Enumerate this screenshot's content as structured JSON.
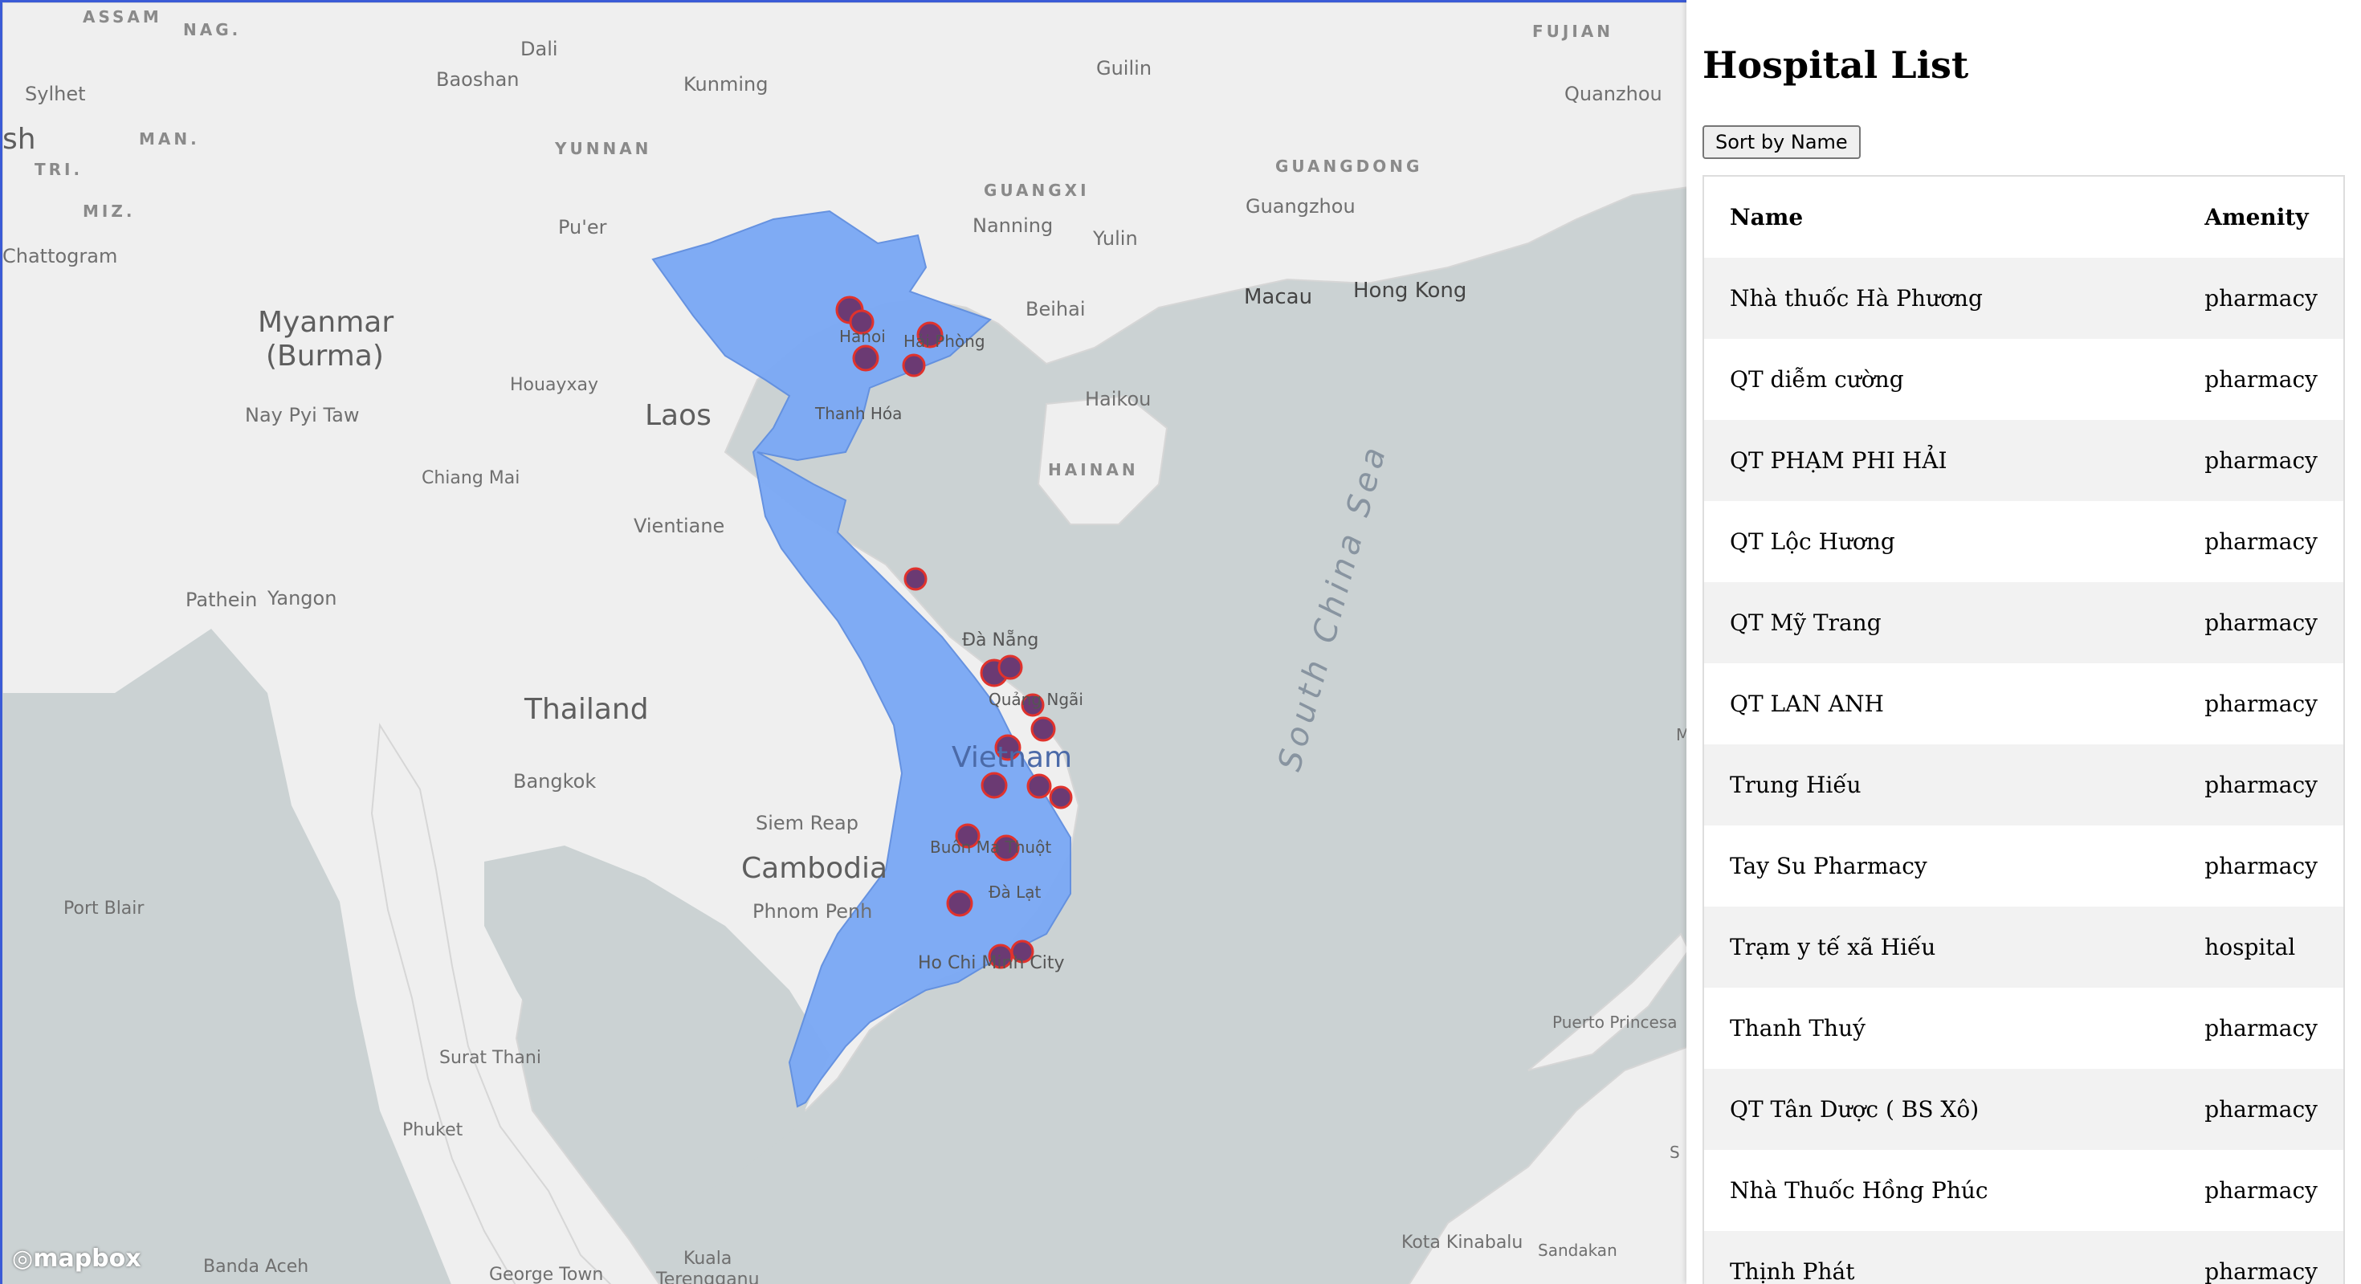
{
  "panel": {
    "title": "Hospital List",
    "sort_button": "Sort by Name",
    "columns": [
      "Name",
      "Amenity"
    ],
    "rows": [
      {
        "name": "Nhà thuốc Hà Phương",
        "amenity": "pharmacy"
      },
      {
        "name": "QT diễm cường",
        "amenity": "pharmacy"
      },
      {
        "name": "QT PHẠM PHI HẢI",
        "amenity": "pharmacy"
      },
      {
        "name": "QT Lộc Hương",
        "amenity": "pharmacy"
      },
      {
        "name": "QT Mỹ Trang",
        "amenity": "pharmacy"
      },
      {
        "name": "QT LAN ANH",
        "amenity": "pharmacy"
      },
      {
        "name": "Trung Hiếu",
        "amenity": "pharmacy"
      },
      {
        "name": "Tay Su Pharmacy",
        "amenity": "pharmacy"
      },
      {
        "name": "Trạm y tế xã Hiếu",
        "amenity": "hospital"
      },
      {
        "name": "Thanh Thuý",
        "amenity": "pharmacy"
      },
      {
        "name": "QT Tân Dược ( BS Xô)",
        "amenity": "pharmacy"
      },
      {
        "name": "Nhà Thuốc Hồng Phúc",
        "amenity": "pharmacy"
      },
      {
        "name": "Thịnh Phát",
        "amenity": "pharmacy"
      }
    ]
  },
  "map": {
    "attribution": "mapbox",
    "highlight_color": "#7aa8f5",
    "marker_colors": {
      "purple": "#6b3a73",
      "red": "#e0322c"
    },
    "labels": {
      "assam": "ASSAM",
      "nag": "NAG.",
      "dali": "Dali",
      "guilin": "Guilin",
      "fujian": "FUJIAN",
      "sylhet": "Sylhet",
      "baoshan": "Baoshan",
      "kunming": "Kunming",
      "quanzhou": "Quanzhou",
      "sh": "sh",
      "man": "MAN.",
      "yunnan": "YUNNAN",
      "tri": "TRI.",
      "guangdong": "GUANGDONG",
      "guangxi": "GUANGXI",
      "miz": "MIZ.",
      "nanning": "Nanning",
      "guangzhou": "Guangzhou",
      "puer": "Pu'er",
      "yulin": "Yulin",
      "chattogram": "Chattogram",
      "macau": "Macau",
      "hongkong": "Hong Kong",
      "myanmar1": "Myanmar",
      "myanmar2": "(Burma)",
      "beihai": "Beihai",
      "hanoi": "Hanoi",
      "haiphong": "Hải Phòng",
      "houayxay": "Houayxay",
      "naypyitaw": "Nay Pyi Taw",
      "laos": "Laos",
      "haikou": "Haikou",
      "thanhhoa": "Thanh Hóa",
      "hainan": "HAINAN",
      "chiangmai": "Chiang Mai",
      "vientiane": "Vientiane",
      "pathein": "Pathein",
      "yangon": "Yangon",
      "danang": "Đà Nẵng",
      "southchinasea": "South China Sea",
      "quangngai": "Quảng Ngãi",
      "thailand": "Thailand",
      "vietnam": "Vietnam",
      "bangkok": "Bangkok",
      "siemreap": "Siem Reap",
      "buonmathuot": "Buôn Ma Thuột",
      "cambodia": "Cambodia",
      "dalat": "Đà Lạt",
      "phnompenh": "Phnom Penh",
      "portblair": "Port Blair",
      "hochiminh": "Ho Chi Minh City",
      "puertoprincesa": "Puerto Princesa",
      "suratthani": "Surat Thani",
      "phuket": "Phuket",
      "kotakinabalu": "Kota Kinabalu",
      "sandakan": "Sandakan",
      "bandaaceh": "Banda Aceh",
      "georgetown": "George Town",
      "kuala": "Kuala",
      "terengganu": "Terengganu",
      "m": "M",
      "s": "S"
    }
  }
}
